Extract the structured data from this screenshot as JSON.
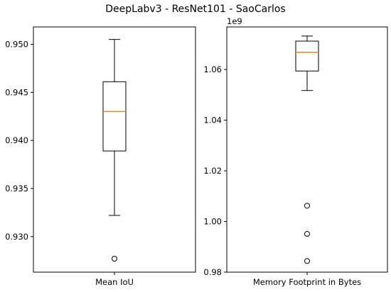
{
  "chart_data": {
    "title": "DeepLabv3 - ResNet101 - SaoCarlos",
    "panels": [
      {
        "type": "box",
        "xlabel": "Mean IoU",
        "ylim": [
          0.9263,
          0.9518
        ],
        "yticks": [
          0.93,
          0.935,
          0.94,
          0.945,
          0.95
        ],
        "ytick_labels": [
          "0.930",
          "0.935",
          "0.940",
          "0.945",
          "0.950"
        ],
        "offset_label": "",
        "box": {
          "whisker_low": 0.9322,
          "q1": 0.9389,
          "median": 0.943,
          "q3": 0.9461,
          "whisker_high": 0.9505,
          "outliers": [
            0.9277
          ]
        }
      },
      {
        "type": "box",
        "xlabel": "Memory Footprint in Bytes",
        "ylim": [
          0.98,
          1.0768
        ],
        "yticks": [
          0.98,
          1.0,
          1.02,
          1.04,
          1.06
        ],
        "ytick_labels": [
          "0.98",
          "1.00",
          "1.02",
          "1.04",
          "1.06"
        ],
        "offset_label": "1e9",
        "box": {
          "whisker_low": 1.0517,
          "q1": 1.0594,
          "median": 1.0668,
          "q3": 1.0712,
          "whisker_high": 1.0732,
          "outliers": [
            1.0062,
            0.9951,
            0.9844
          ]
        }
      }
    ],
    "colors": {
      "median": "#ff7f0e",
      "box": "#000000"
    }
  }
}
